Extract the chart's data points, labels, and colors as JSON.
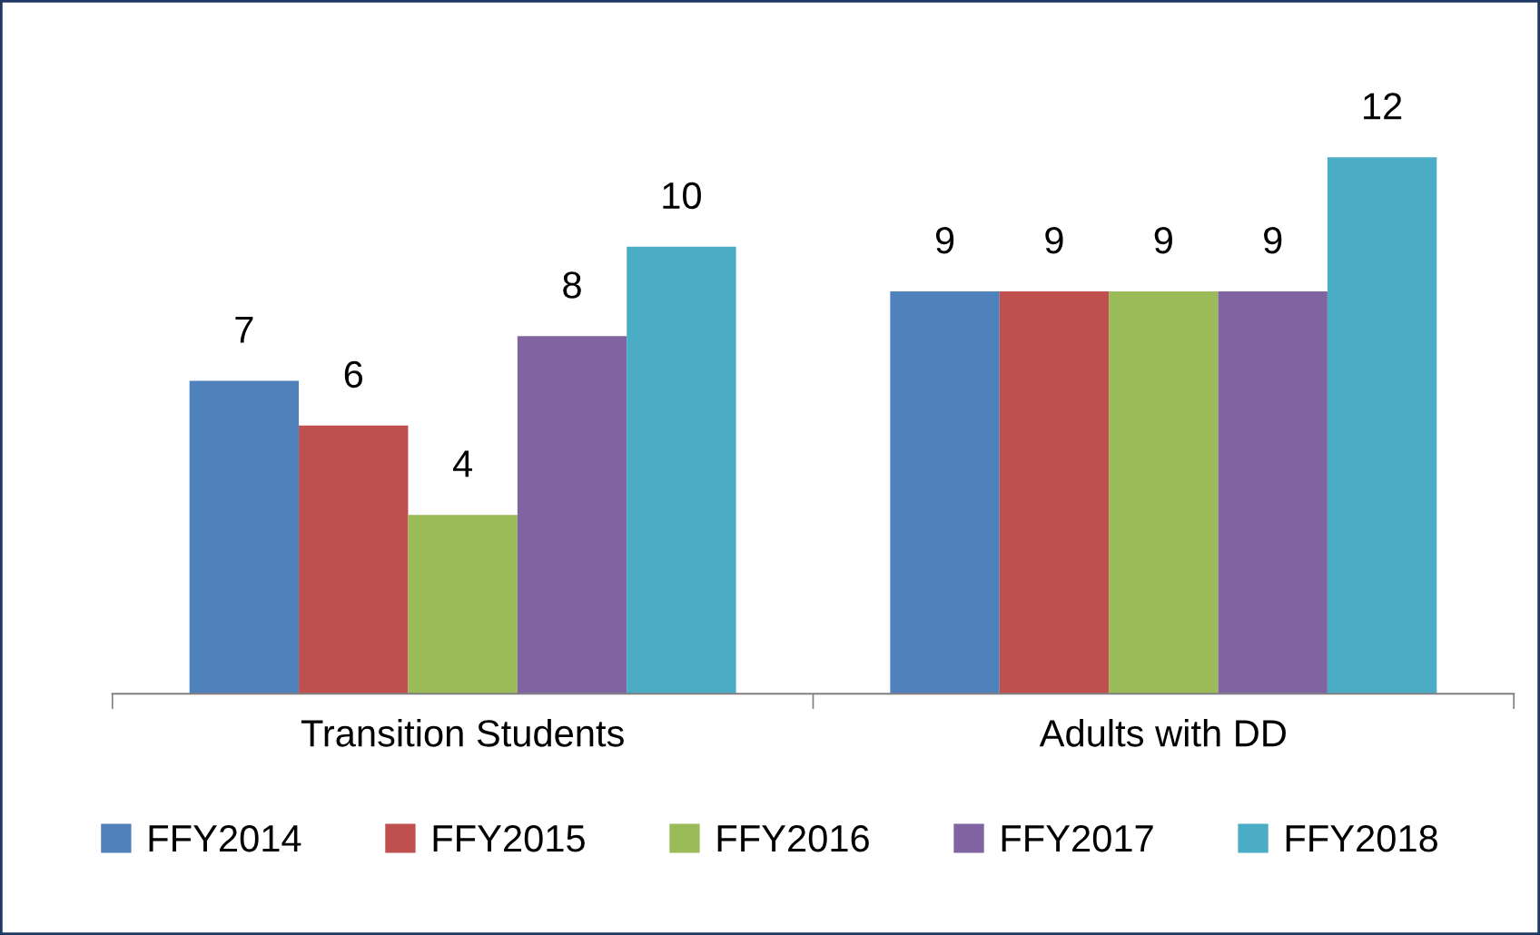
{
  "chart_data": {
    "type": "bar",
    "categories": [
      "Transition Students",
      "Adults with DD"
    ],
    "series": [
      {
        "name": "FFY2014",
        "color": "#4f81bd",
        "values": [
          7,
          9
        ]
      },
      {
        "name": "FFY2015",
        "color": "#c0504d",
        "values": [
          6,
          9
        ]
      },
      {
        "name": "FFY2016",
        "color": "#9bbb59",
        "values": [
          4,
          9
        ]
      },
      {
        "name": "FFY2017",
        "color": "#8064a2",
        "values": [
          8,
          9
        ]
      },
      {
        "name": "FFY2018",
        "color": "#4bacc6",
        "values": [
          10,
          12
        ]
      }
    ],
    "data_labels": true,
    "legend": "bottom",
    "grid": false,
    "tick_labels": "x"
  }
}
